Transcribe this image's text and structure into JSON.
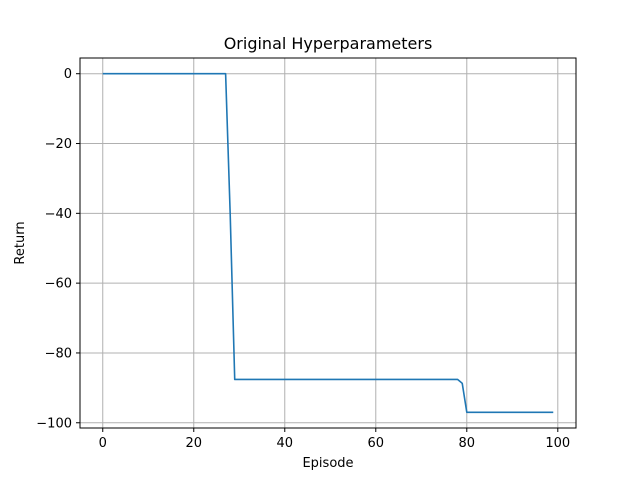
{
  "chart_data": {
    "type": "line",
    "title": "Original Hyperparameters",
    "xlabel": "Episode",
    "ylabel": "Return",
    "xlim": [
      -5,
      104
    ],
    "ylim": [
      -101.5,
      4.5
    ],
    "xticks": [
      0,
      20,
      40,
      60,
      80,
      100
    ],
    "yticks": [
      0,
      -20,
      -40,
      -60,
      -80,
      -100
    ],
    "xtick_labels": [
      "0",
      "20",
      "40",
      "60",
      "80",
      "100"
    ],
    "ytick_labels": [
      "0",
      "−20",
      "−40",
      "−60",
      "−80",
      "−100"
    ],
    "grid": true,
    "series": [
      {
        "color": "#1f77b4",
        "x": [
          0,
          27,
          28,
          29,
          78,
          79,
          80,
          99
        ],
        "y": [
          0,
          0,
          -40,
          -87.6,
          -87.6,
          -88.7,
          -97,
          -97
        ]
      }
    ]
  }
}
